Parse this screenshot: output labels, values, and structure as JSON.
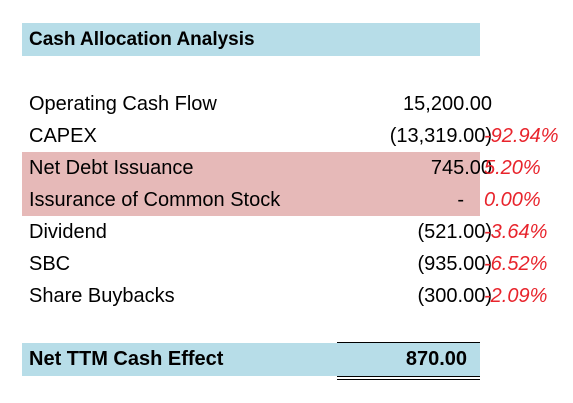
{
  "title": "Cash Allocation Analysis",
  "rows": [
    {
      "label": "Operating Cash Flow",
      "value": "15,200.00",
      "pct": ""
    },
    {
      "label": "CAPEX",
      "value": "(13,319.00)",
      "pct": "-92.94%"
    },
    {
      "label": "Net Debt Issuance",
      "value": "745.00",
      "pct": "5.20%"
    },
    {
      "label": "Issurance of Common Stock",
      "value": "-",
      "pct": "0.00%"
    },
    {
      "label": "Dividend",
      "value": "(521.00)",
      "pct": "-3.64%"
    },
    {
      "label": "SBC",
      "value": "(935.00)",
      "pct": "-6.52%"
    },
    {
      "label": "Share Buybacks",
      "value": "(300.00)",
      "pct": "-2.09%"
    }
  ],
  "total": {
    "label": "Net TTM Cash Effect",
    "value": "870.00"
  },
  "colors": {
    "header_fill": "#b7dde8",
    "highlight_fill": "#e6b9b8",
    "percent_text": "#e8242c"
  }
}
